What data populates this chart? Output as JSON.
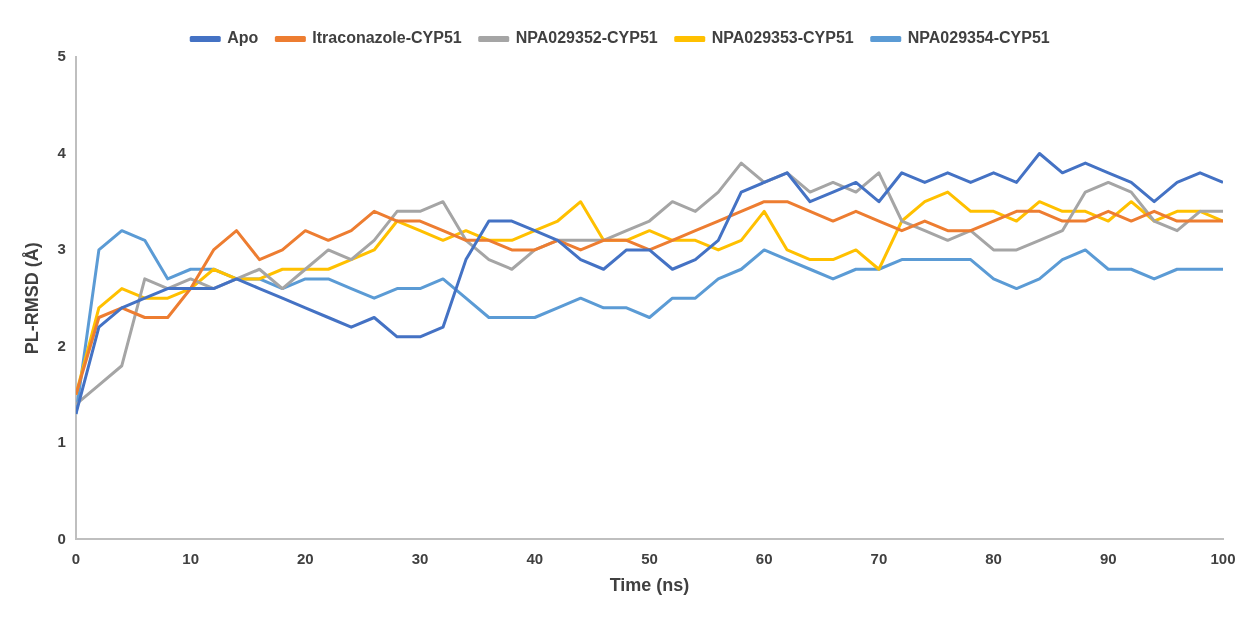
{
  "chart_data": {
    "type": "line",
    "xlabel": "Time (ns)",
    "ylabel": "PL-RMSD (Å)",
    "x": [
      0,
      2,
      4,
      6,
      8,
      10,
      12,
      14,
      16,
      18,
      20,
      22,
      24,
      26,
      28,
      30,
      32,
      34,
      36,
      38,
      40,
      42,
      44,
      46,
      48,
      50,
      52,
      54,
      56,
      58,
      60,
      62,
      64,
      66,
      68,
      70,
      72,
      74,
      76,
      78,
      80,
      82,
      84,
      86,
      88,
      90,
      92,
      94,
      96,
      98,
      100
    ],
    "series": [
      {
        "name": "Apo",
        "color": "#4472c4",
        "values": [
          1.3,
          2.2,
          2.4,
          2.5,
          2.6,
          2.6,
          2.6,
          2.7,
          2.6,
          2.5,
          2.4,
          2.3,
          2.2,
          2.3,
          2.1,
          2.1,
          2.2,
          2.9,
          3.3,
          3.3,
          3.2,
          3.1,
          2.9,
          2.8,
          3.0,
          3.0,
          2.8,
          2.9,
          3.1,
          3.6,
          3.7,
          3.8,
          3.5,
          3.6,
          3.7,
          3.5,
          3.8,
          3.7,
          3.8,
          3.7,
          3.8,
          3.7,
          4.0,
          3.8,
          3.9,
          3.8,
          3.7,
          3.5,
          3.7,
          3.8,
          3.7
        ]
      },
      {
        "name": "Itraconazole-CYP51",
        "color": "#ed7d31",
        "values": [
          1.5,
          2.3,
          2.4,
          2.3,
          2.3,
          2.6,
          3.0,
          3.2,
          2.9,
          3.0,
          3.2,
          3.1,
          3.2,
          3.4,
          3.3,
          3.3,
          3.2,
          3.1,
          3.1,
          3.0,
          3.0,
          3.1,
          3.0,
          3.1,
          3.1,
          3.0,
          3.1,
          3.2,
          3.3,
          3.4,
          3.5,
          3.5,
          3.4,
          3.3,
          3.4,
          3.3,
          3.2,
          3.3,
          3.2,
          3.2,
          3.3,
          3.4,
          3.4,
          3.3,
          3.3,
          3.4,
          3.3,
          3.4,
          3.3,
          3.3,
          3.3
        ]
      },
      {
        "name": "NPA029352-CYP51",
        "color": "#a5a5a5",
        "values": [
          1.4,
          1.6,
          1.8,
          2.7,
          2.6,
          2.7,
          2.6,
          2.7,
          2.8,
          2.6,
          2.8,
          3.0,
          2.9,
          3.1,
          3.4,
          3.4,
          3.5,
          3.1,
          2.9,
          2.8,
          3.0,
          3.1,
          3.1,
          3.1,
          3.2,
          3.3,
          3.5,
          3.4,
          3.6,
          3.9,
          3.7,
          3.8,
          3.6,
          3.7,
          3.6,
          3.8,
          3.3,
          3.2,
          3.1,
          3.2,
          3.0,
          3.0,
          3.1,
          3.2,
          3.6,
          3.7,
          3.6,
          3.3,
          3.2,
          3.4,
          3.4
        ]
      },
      {
        "name": "NPA029353-CYP51",
        "color": "#ffc000",
        "values": [
          1.5,
          2.4,
          2.6,
          2.5,
          2.5,
          2.6,
          2.8,
          2.7,
          2.7,
          2.8,
          2.8,
          2.8,
          2.9,
          3.0,
          3.3,
          3.2,
          3.1,
          3.2,
          3.1,
          3.1,
          3.2,
          3.3,
          3.5,
          3.1,
          3.1,
          3.2,
          3.1,
          3.1,
          3.0,
          3.1,
          3.4,
          3.0,
          2.9,
          2.9,
          3.0,
          2.8,
          3.3,
          3.5,
          3.6,
          3.4,
          3.4,
          3.3,
          3.5,
          3.4,
          3.4,
          3.3,
          3.5,
          3.3,
          3.4,
          3.4,
          3.3
        ]
      },
      {
        "name": "NPA029354-CYP51",
        "color": "#5b9bd5",
        "values": [
          1.3,
          3.0,
          3.2,
          3.1,
          2.7,
          2.8,
          2.8,
          2.7,
          2.7,
          2.6,
          2.7,
          2.7,
          2.6,
          2.5,
          2.6,
          2.6,
          2.7,
          2.5,
          2.3,
          2.3,
          2.3,
          2.4,
          2.5,
          2.4,
          2.4,
          2.3,
          2.5,
          2.5,
          2.7,
          2.8,
          3.0,
          2.9,
          2.8,
          2.7,
          2.8,
          2.8,
          2.9,
          2.9,
          2.9,
          2.9,
          2.7,
          2.6,
          2.7,
          2.9,
          3.0,
          2.8,
          2.8,
          2.7,
          2.8,
          2.8,
          2.8
        ]
      }
    ],
    "xlim": [
      0,
      100
    ],
    "xticks": [
      0,
      10,
      20,
      30,
      40,
      50,
      60,
      70,
      80,
      90,
      100
    ],
    "ylim": [
      0,
      5
    ],
    "yticks": [
      0,
      1,
      2,
      3,
      4,
      5
    ],
    "legend": "top",
    "grid": false,
    "marker": "none",
    "line_style": "solid"
  }
}
